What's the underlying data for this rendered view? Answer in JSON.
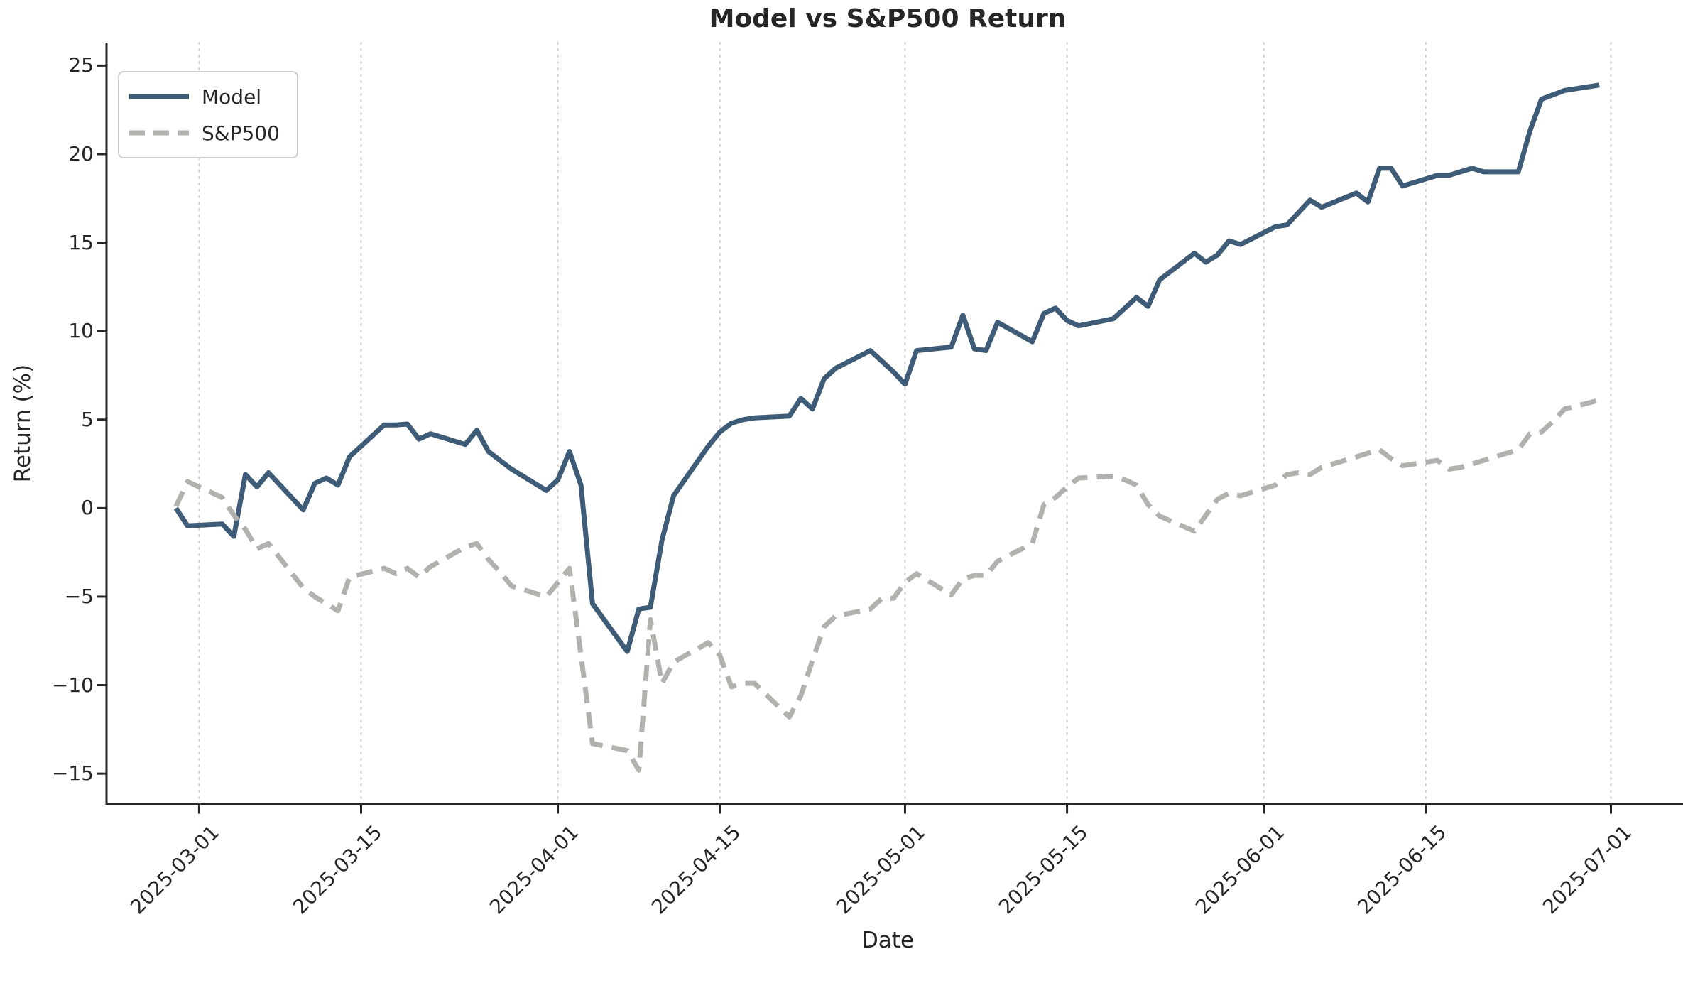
{
  "chart": {
    "title": "Model vs S&P500 Return",
    "xlabel": "Date",
    "ylabel": "Return (%)",
    "legend": [
      {
        "label": "Model"
      },
      {
        "label": "S&P500"
      }
    ]
  },
  "chart_data": {
    "type": "line",
    "title": "Model vs S&P500 Return",
    "xlabel": "Date",
    "ylabel": "Return (%)",
    "grid": "vertical-dotted",
    "legend_position": "upper-left",
    "xlim": [
      "2025-02-21",
      "2025-07-06"
    ],
    "ylim": [
      -16.7,
      26.3
    ],
    "xticks": [
      "2025-03-01",
      "2025-03-15",
      "2025-04-01",
      "2025-04-15",
      "2025-05-01",
      "2025-05-15",
      "2025-06-01",
      "2025-06-15",
      "2025-07-01"
    ],
    "yticks": [
      25,
      20,
      15,
      10,
      5,
      0,
      -5,
      -10,
      -15
    ],
    "x": [
      "2025-02-27",
      "2025-02-28",
      "2025-03-03",
      "2025-03-04",
      "2025-03-05",
      "2025-03-06",
      "2025-03-07",
      "2025-03-10",
      "2025-03-11",
      "2025-03-12",
      "2025-03-13",
      "2025-03-14",
      "2025-03-17",
      "2025-03-18",
      "2025-03-19",
      "2025-03-20",
      "2025-03-21",
      "2025-03-24",
      "2025-03-25",
      "2025-03-26",
      "2025-03-27",
      "2025-03-28",
      "2025-03-31",
      "2025-04-01",
      "2025-04-02",
      "2025-04-03",
      "2025-04-04",
      "2025-04-07",
      "2025-04-08",
      "2025-04-09",
      "2025-04-10",
      "2025-04-11",
      "2025-04-14",
      "2025-04-15",
      "2025-04-16",
      "2025-04-17",
      "2025-04-18",
      "2025-04-21",
      "2025-04-22",
      "2025-04-23",
      "2025-04-24",
      "2025-04-25",
      "2025-04-28",
      "2025-04-29",
      "2025-04-30",
      "2025-05-01",
      "2025-05-02",
      "2025-05-05",
      "2025-05-06",
      "2025-05-07",
      "2025-05-08",
      "2025-05-09",
      "2025-05-12",
      "2025-05-13",
      "2025-05-14",
      "2025-05-15",
      "2025-05-16",
      "2025-05-19",
      "2025-05-20",
      "2025-05-21",
      "2025-05-22",
      "2025-05-23",
      "2025-05-26",
      "2025-05-27",
      "2025-05-28",
      "2025-05-29",
      "2025-05-30",
      "2025-06-02",
      "2025-06-03",
      "2025-06-04",
      "2025-06-05",
      "2025-06-06",
      "2025-06-09",
      "2025-06-10",
      "2025-06-11",
      "2025-06-12",
      "2025-06-13",
      "2025-06-16",
      "2025-06-17",
      "2025-06-18",
      "2025-06-19",
      "2025-06-20",
      "2025-06-23",
      "2025-06-24",
      "2025-06-25",
      "2025-06-26",
      "2025-06-27",
      "2025-06-30"
    ],
    "series": [
      {
        "name": "Model",
        "color": "#3e5c77",
        "style": "solid",
        "values": [
          0.0,
          -1.0,
          -0.9,
          -1.6,
          1.9,
          1.2,
          2.0,
          -0.1,
          1.4,
          1.7,
          1.3,
          2.9,
          4.7,
          4.7,
          4.75,
          3.9,
          4.2,
          3.6,
          4.4,
          3.2,
          2.7,
          2.2,
          1.0,
          1.6,
          3.2,
          1.3,
          -5.4,
          -8.1,
          -5.7,
          -5.6,
          -1.8,
          0.7,
          3.5,
          4.3,
          4.8,
          5.0,
          5.1,
          5.2,
          6.2,
          5.6,
          7.3,
          7.9,
          8.9,
          8.3,
          7.7,
          7.0,
          8.9,
          9.1,
          10.9,
          9.0,
          8.9,
          10.5,
          9.4,
          11.0,
          11.3,
          10.6,
          10.3,
          10.7,
          11.3,
          11.9,
          11.4,
          12.9,
          14.4,
          13.9,
          14.3,
          15.1,
          14.9,
          15.9,
          16.0,
          16.7,
          17.4,
          17.0,
          17.8,
          17.3,
          19.2,
          19.2,
          18.2,
          18.8,
          18.8,
          19.0,
          19.2,
          19.0,
          19.0,
          21.3,
          23.1,
          23.35,
          23.6,
          23.9
        ]
      },
      {
        "name": "S&P500",
        "color": "#b1b1ae",
        "style": "dashed",
        "values": [
          0.1,
          1.5,
          0.6,
          -0.4,
          -1.2,
          -2.3,
          -2.0,
          -4.5,
          -5.0,
          -5.4,
          -5.8,
          -3.9,
          -3.4,
          -3.7,
          -3.4,
          -3.9,
          -3.3,
          -2.2,
          -2.0,
          -2.9,
          -3.6,
          -4.4,
          -5.0,
          -4.2,
          -3.4,
          -8.3,
          -13.3,
          -13.7,
          -14.8,
          -6.3,
          -9.9,
          -8.7,
          -7.6,
          -8.3,
          -10.1,
          -9.9,
          -9.9,
          -11.8,
          -10.6,
          -8.6,
          -6.7,
          -6.1,
          -5.7,
          -5.1,
          -5.1,
          -4.2,
          -3.7,
          -4.9,
          -4.0,
          -3.8,
          -3.8,
          -3.0,
          -2.0,
          0.2,
          0.6,
          1.2,
          1.7,
          1.8,
          1.6,
          1.3,
          0.2,
          -0.45,
          -1.3,
          -0.4,
          0.5,
          0.85,
          0.7,
          1.3,
          1.9,
          2.0,
          1.9,
          2.3,
          2.9,
          3.1,
          3.3,
          2.8,
          2.4,
          2.7,
          2.2,
          2.3,
          2.5,
          2.7,
          3.3,
          4.2,
          4.3,
          4.9,
          5.6,
          6.1
        ]
      }
    ]
  }
}
